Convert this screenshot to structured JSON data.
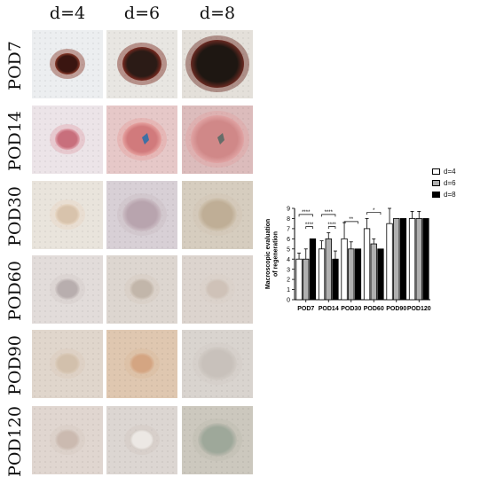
{
  "figure": {
    "columns": [
      {
        "label": "d=4",
        "key": "d4"
      },
      {
        "label": "d=6",
        "key": "d6"
      },
      {
        "label": "d=8",
        "key": "d8"
      }
    ],
    "rows": [
      {
        "label": "POD7",
        "photos": [
          {
            "background": "#eceef0",
            "lesion": "#3a1510",
            "rim": "#8a3a2a",
            "lesion_size": "small"
          },
          {
            "background": "#e8e6e2",
            "lesion": "#2b1b16",
            "rim": "#7a2a20",
            "lesion_size": "medium"
          },
          {
            "background": "#e4e0da",
            "lesion": "#1e1712",
            "rim": "#6b2a22",
            "lesion_size": "large"
          }
        ]
      },
      {
        "label": "POD14",
        "photos": [
          {
            "background": "#ece4e8",
            "lesion": "#c86f7c",
            "rim": "#e2a8b2",
            "lesion_size": "small"
          },
          {
            "background": "#e6c8c8",
            "lesion": "#d17a7c",
            "rim": "#e6a2a0",
            "lesion_size": "medium",
            "mark": "#2f6fa8"
          },
          {
            "background": "#dcbcbc",
            "lesion": "#d08888",
            "rim": "#e0a4a4",
            "lesion_size": "large",
            "mark": "#5a6a66"
          }
        ]
      },
      {
        "label": "POD30",
        "photos": [
          {
            "background": "#e9e4dc",
            "lesion": "#d8c3ac",
            "rim": "#e8d8c6",
            "lesion_size": "small"
          },
          {
            "background": "#d8d0d6",
            "lesion": "#b8a4ae",
            "rim": "#cdbfc6",
            "lesion_size": "medium"
          },
          {
            "background": "#d6cdbf",
            "lesion": "#bfae96",
            "rim": "#d2c6b4",
            "lesion_size": "medium"
          }
        ]
      },
      {
        "label": "POD60",
        "photos": [
          {
            "background": "#e2dcda",
            "lesion": "#b8aeae",
            "rim": "#d4ccca",
            "lesion_size": "small"
          },
          {
            "background": "#ddd6d0",
            "lesion": "#c2b6aa",
            "rim": "#d6ccc2",
            "lesion_size": "small"
          },
          {
            "background": "#dcd4ce",
            "lesion": "#cfc2b8",
            "rim": "#d9d0c8",
            "lesion_size": "small"
          }
        ]
      },
      {
        "label": "POD90",
        "photos": [
          {
            "background": "#e0d6cc",
            "lesion": "#d2c0ac",
            "rim": "#dccdbd",
            "lesion_size": "small"
          },
          {
            "background": "#dfc7b0",
            "lesion": "#d4a582",
            "rim": "#dcbca0",
            "lesion_size": "small"
          },
          {
            "background": "#d9d4cf",
            "lesion": "#c8c1bb",
            "rim": "#d2ccc6",
            "lesion_size": "medium"
          }
        ]
      },
      {
        "label": "POD120",
        "photos": [
          {
            "background": "#e0d6d0",
            "lesion": "#cbbab0",
            "rim": "#d8ccc4",
            "lesion_size": "small"
          },
          {
            "background": "#dcd6d2",
            "lesion": "#ece8e4",
            "rim": "#d2cac4",
            "lesion_size": "small"
          },
          {
            "background": "#ccc8be",
            "lesion": "#9ea89a",
            "rim": "#bfbdb2",
            "lesion_size": "medium"
          }
        ]
      }
    ]
  },
  "chart_data": {
    "type": "bar",
    "ylabel": "Macroscopic evaluation\nof regeneration",
    "ylim": [
      0,
      9
    ],
    "yticks": [
      0,
      1,
      2,
      3,
      4,
      5,
      6,
      7,
      8,
      9
    ],
    "grid": false,
    "legend_position": "top-right",
    "categories": [
      "POD7",
      "POD14",
      "POD30",
      "POD60",
      "POD90",
      "POD120"
    ],
    "series": [
      {
        "name": "d=4",
        "values": [
          4,
          5,
          6,
          7,
          7.5,
          8
        ],
        "error": [
          0.6,
          0.8,
          1.6,
          1.0,
          1.5,
          0.7
        ],
        "fill": "#ffffff"
      },
      {
        "name": "d=6",
        "values": [
          4,
          6,
          5,
          5.5,
          8,
          8
        ],
        "error": [
          1.0,
          0.6,
          0.7,
          0.5,
          0,
          0.7
        ],
        "fill": "#b0b0b0"
      },
      {
        "name": "d=8",
        "values": [
          6,
          4,
          5,
          5,
          8,
          8
        ],
        "error": [
          0,
          0.8,
          0,
          0,
          0,
          0
        ],
        "fill": "#000000"
      }
    ],
    "significance": [
      {
        "category": "POD7",
        "from": 0,
        "to": 2,
        "label": "****",
        "level": 8.4
      },
      {
        "category": "POD7",
        "from": 1,
        "to": 2,
        "label": "****",
        "level": 7.2
      },
      {
        "category": "POD14",
        "from": 0,
        "to": 2,
        "label": "****",
        "level": 8.4
      },
      {
        "category": "POD14",
        "from": 1,
        "to": 2,
        "label": "****",
        "level": 7.2
      },
      {
        "category": "POD30",
        "from": 0,
        "to": 2,
        "label": "**",
        "level": 7.7
      },
      {
        "category": "POD60",
        "from": 0,
        "to": 2,
        "label": "*",
        "level": 8.6
      }
    ]
  }
}
